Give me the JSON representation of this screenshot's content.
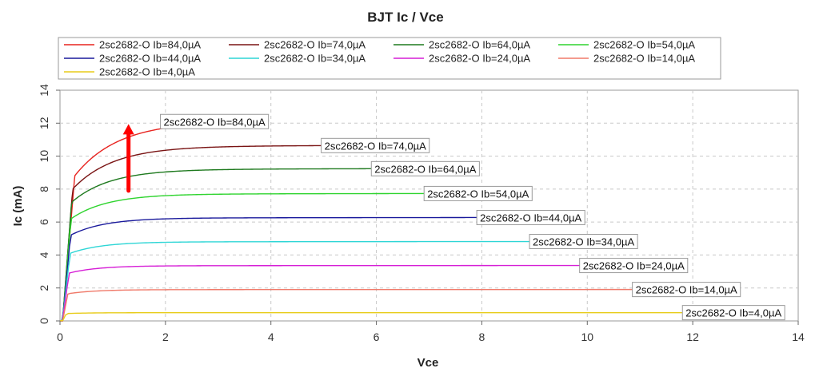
{
  "chart_data": {
    "type": "line",
    "title": "BJT Ic / Vce",
    "xlabel": "Vce",
    "ylabel": "Ic (mA)",
    "xlim": [
      0,
      14
    ],
    "ylim": [
      0,
      14
    ],
    "x_ticks": [
      "0",
      "2",
      "4",
      "6",
      "8",
      "10",
      "12",
      "14"
    ],
    "y_ticks": [
      "0",
      "2",
      "4",
      "6",
      "8",
      "10",
      "12",
      "14"
    ],
    "grid": true,
    "legend_position": "top",
    "series": [
      {
        "name": "2sc2682-O Ib=84,0µA",
        "color": "#e8231f",
        "x_end": 1.95,
        "saturation": 12.05,
        "knee_value": 8.8,
        "knee_x": 0.28
      },
      {
        "name": "2sc2682-O Ib=74,0µA",
        "color": "#7a1414",
        "x_end": 5.0,
        "saturation": 10.6,
        "knee_value": 8.0,
        "knee_x": 0.24
      },
      {
        "name": "2sc2682-O Ib=64,0µA",
        "color": "#1f7a1f",
        "x_end": 5.95,
        "saturation": 9.2,
        "knee_value": 7.2,
        "knee_x": 0.22
      },
      {
        "name": "2sc2682-O Ib=54,0µA",
        "color": "#2fd42f",
        "x_end": 6.95,
        "saturation": 7.7,
        "knee_value": 6.2,
        "knee_x": 0.21
      },
      {
        "name": "2sc2682-O Ib=44,0µA",
        "color": "#1a1a9c",
        "x_end": 7.95,
        "saturation": 6.25,
        "knee_value": 5.2,
        "knee_x": 0.2
      },
      {
        "name": "2sc2682-O Ib=34,0µA",
        "color": "#2fd6d6",
        "x_end": 8.95,
        "saturation": 4.8,
        "knee_value": 4.1,
        "knee_x": 0.19
      },
      {
        "name": "2sc2682-O Ib=24,0µA",
        "color": "#d61fd6",
        "x_end": 9.9,
        "saturation": 3.35,
        "knee_value": 2.9,
        "knee_x": 0.17
      },
      {
        "name": "2sc2682-O Ib=14,0µA",
        "color": "#f07a6a",
        "x_end": 10.9,
        "saturation": 1.9,
        "knee_value": 1.65,
        "knee_x": 0.15
      },
      {
        "name": "2sc2682-O Ib=4,0µA",
        "color": "#e8cc1a",
        "x_end": 11.85,
        "saturation": 0.5,
        "knee_value": 0.45,
        "knee_x": 0.12
      }
    ],
    "annotation": {
      "type": "arrow",
      "color": "#ff0000",
      "x": 1.3,
      "y_from": 7.9,
      "y_to": 11.8
    }
  }
}
